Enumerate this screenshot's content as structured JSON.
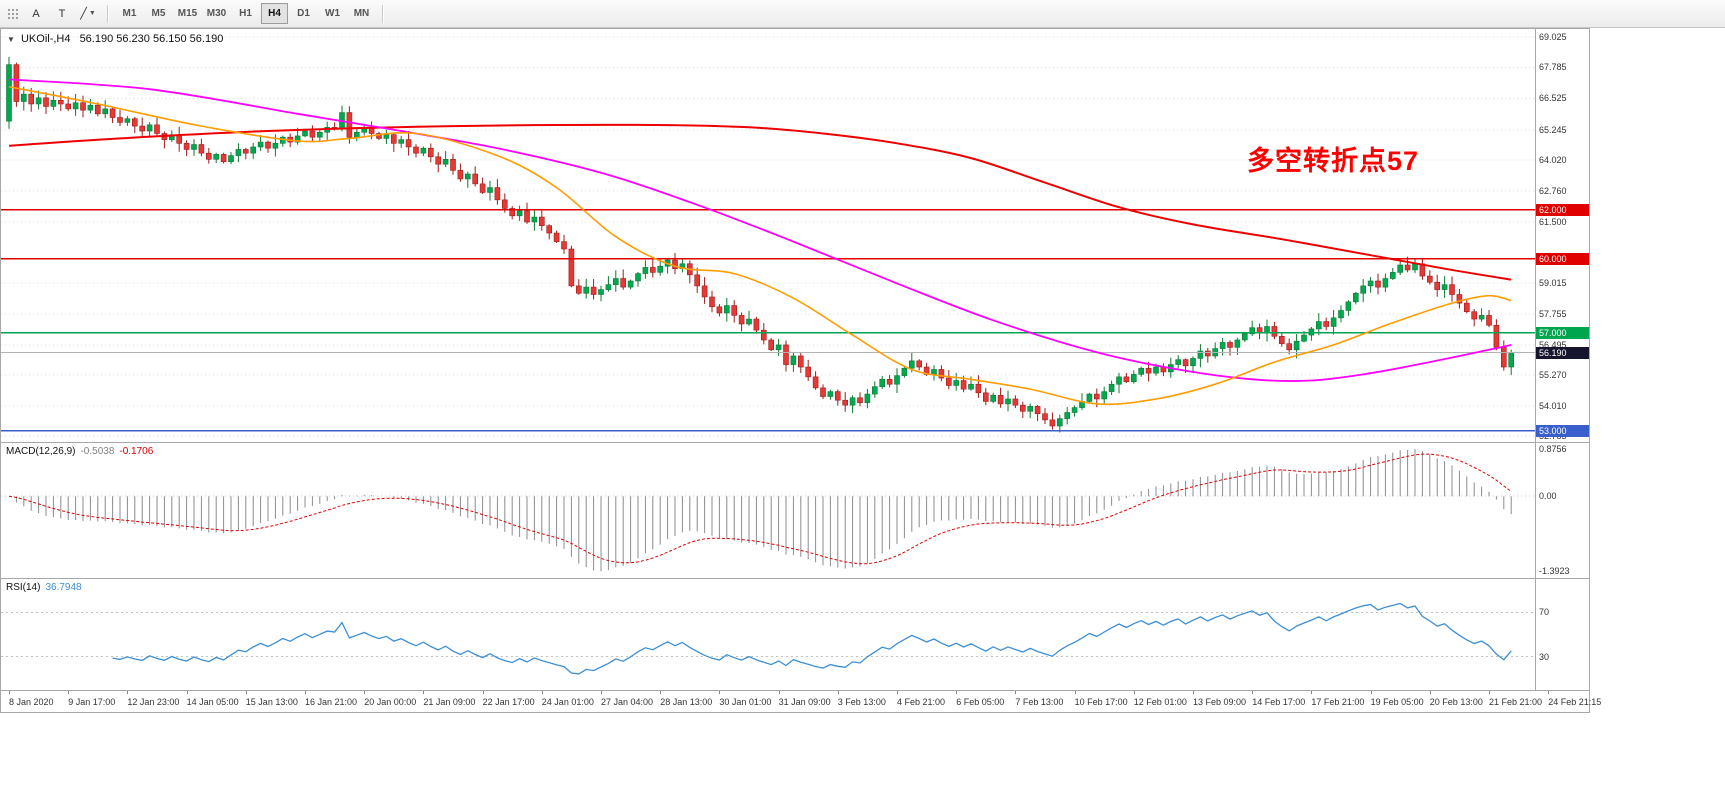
{
  "toolbar": {
    "tools": [
      {
        "label": "A",
        "name": "text-tool"
      },
      {
        "label": "T",
        "name": "shape-tool"
      },
      {
        "label": "╱",
        "name": "line-tool"
      }
    ],
    "timeframes": [
      "M1",
      "M5",
      "M15",
      "M30",
      "H1",
      "H4",
      "D1",
      "W1",
      "MN"
    ],
    "active_timeframe": "H4"
  },
  "chart": {
    "price_axis": {
      "labels": [
        "69.025",
        "67.785",
        "66.525",
        "65.245",
        "64.020",
        "62.760",
        "61.500",
        "59.015",
        "57.755",
        "56.495",
        "55.270",
        "54.010",
        "52.785"
      ],
      "badges": [
        {
          "value": "62.000",
          "price": 62.0,
          "color": "#e00000"
        },
        {
          "value": "60.000",
          "price": 60.0,
          "color": "#e00000"
        },
        {
          "value": "57.000",
          "price": 57.0,
          "color": "#00a550"
        },
        {
          "value": "56.190",
          "price": 56.19,
          "color": "#15152e"
        },
        {
          "value": "53.000",
          "price": 53.0,
          "color": "#3a5fcd"
        }
      ]
    }
  },
  "indicators": {
    "macd": {
      "name": "MACD(12,26,9)",
      "value_macd": "-0.5038",
      "value_signal": "-0.1706",
      "axis_labels": [
        {
          "text": "0.8756",
          "value": 0.8756
        },
        {
          "text": "0.00",
          "value": 0.0
        },
        {
          "text": "-1.3923",
          "value": -1.3923
        }
      ],
      "fast": 12,
      "slow": 26,
      "signal": 9,
      "histogram_color": "#8c8c8c",
      "signal_color": "#e00000"
    },
    "rsi": {
      "name": "RSI(14)",
      "value": "36.7948",
      "period": 14,
      "levels": [
        70,
        30
      ],
      "line_color": "#3c8fd6"
    }
  },
  "chart_data": {
    "type": "candlestick",
    "title": "UKOil-,H4",
    "symbol": "UKOil-",
    "timeframe": "H4",
    "current_ohlc": "56.190 56.230 56.150 56.190",
    "annotation": "多空转折点57",
    "annotation_color": "#ff0000",
    "ylim": [
      52.55,
      69.35
    ],
    "bid": 56.19,
    "up_color": "#00a94f",
    "down_color": "#e53935",
    "x_labels": [
      "8 Jan 2020",
      "9 Jan 17:00",
      "12 Jan 23:00",
      "14 Jan 05:00",
      "15 Jan 13:00",
      "16 Jan 21:00",
      "20 Jan 00:00",
      "21 Jan 09:00",
      "22 Jan 17:00",
      "24 Jan 01:00",
      "27 Jan 04:00",
      "28 Jan 13:00",
      "30 Jan 01:00",
      "31 Jan 09:00",
      "3 Feb 13:00",
      "4 Feb 21:00",
      "6 Feb 05:00",
      "7 Feb 13:00",
      "10 Feb 17:00",
      "12 Feb 01:00",
      "13 Feb 09:00",
      "14 Feb 17:00",
      "17 Feb 21:00",
      "19 Feb 05:00",
      "20 Feb 13:00",
      "21 Feb 21:00",
      "24 Feb 21:15"
    ],
    "bars_per_label": 8,
    "open_first": 65.6,
    "closes": [
      67.9,
      66.4,
      66.7,
      66.3,
      66.55,
      66.2,
      66.45,
      66.3,
      66.1,
      66.35,
      66.05,
      66.25,
      65.9,
      66.1,
      65.75,
      65.55,
      65.7,
      65.4,
      65.2,
      65.45,
      65.1,
      64.85,
      65.05,
      64.7,
      64.45,
      64.65,
      64.3,
      64.05,
      64.25,
      63.95,
      64.2,
      64.45,
      64.3,
      64.55,
      64.75,
      64.5,
      64.7,
      64.95,
      64.75,
      65.0,
      65.2,
      64.95,
      65.15,
      65.35,
      65.3,
      65.95,
      64.95,
      65.15,
      65.35,
      65.1,
      64.9,
      65.05,
      64.7,
      64.85,
      64.55,
      64.3,
      64.5,
      64.15,
      63.85,
      64.05,
      63.6,
      63.25,
      63.45,
      63.05,
      62.7,
      62.9,
      62.4,
      62.05,
      61.75,
      61.95,
      61.5,
      61.7,
      61.35,
      61.05,
      60.7,
      60.4,
      58.9,
      58.6,
      58.85,
      58.55,
      58.75,
      58.95,
      59.2,
      58.85,
      59.1,
      59.4,
      59.65,
      59.45,
      59.7,
      59.95,
      59.6,
      59.8,
      59.35,
      58.9,
      58.45,
      58.05,
      57.8,
      58.1,
      57.7,
      57.35,
      57.55,
      57.1,
      56.7,
      56.3,
      56.5,
      55.7,
      56.05,
      55.6,
      55.2,
      54.75,
      54.4,
      54.6,
      54.25,
      54.05,
      54.35,
      54.15,
      54.5,
      54.8,
      55.1,
      54.9,
      55.25,
      55.55,
      55.85,
      55.6,
      55.3,
      55.5,
      55.15,
      54.85,
      55.05,
      54.7,
      54.9,
      54.55,
      54.2,
      54.45,
      54.1,
      54.3,
      54.05,
      53.8,
      54.0,
      53.7,
      53.45,
      53.2,
      53.5,
      53.75,
      53.95,
      54.2,
      54.5,
      54.3,
      54.6,
      54.9,
      55.2,
      55.0,
      55.3,
      55.55,
      55.35,
      55.6,
      55.4,
      55.7,
      55.9,
      55.65,
      55.95,
      56.25,
      56.05,
      56.35,
      56.6,
      56.4,
      56.7,
      56.95,
      57.2,
      57.0,
      57.25,
      56.85,
      56.55,
      56.3,
      56.65,
      56.9,
      57.15,
      57.45,
      57.25,
      57.6,
      57.9,
      58.25,
      58.6,
      58.9,
      59.1,
      58.85,
      59.2,
      59.45,
      59.75,
      59.55,
      59.8,
      59.3,
      59.05,
      58.75,
      58.95,
      58.55,
      58.2,
      57.85,
      57.55,
      57.7,
      57.3,
      56.4,
      55.6,
      56.19
    ],
    "hlines": [
      {
        "price": 62.0,
        "color": "#e00000",
        "width": 1.4
      },
      {
        "price": 60.0,
        "color": "#e00000",
        "width": 1.4
      },
      {
        "price": 57.0,
        "color": "#00a550",
        "width": 1.6
      },
      {
        "price": 53.0,
        "color": "#3a5fcd",
        "width": 1.6
      }
    ],
    "moving_averages": [
      {
        "name": "ma-slow",
        "color": "#ee0000",
        "width": 2,
        "points": [
          [
            0,
            64.6
          ],
          [
            15,
            64.9
          ],
          [
            35,
            65.2
          ],
          [
            60,
            65.4
          ],
          [
            85,
            65.45
          ],
          [
            100,
            65.35
          ],
          [
            110,
            65.1
          ],
          [
            120,
            64.7
          ],
          [
            130,
            64.1
          ],
          [
            140,
            63.1
          ],
          [
            150,
            62.1
          ],
          [
            160,
            61.4
          ],
          [
            172,
            60.8
          ],
          [
            184,
            60.15
          ],
          [
            194,
            59.6
          ],
          [
            203,
            59.15
          ]
        ]
      },
      {
        "name": "ma-mid",
        "color": "#ff00ff",
        "width": 1.8,
        "points": [
          [
            0,
            67.3
          ],
          [
            19,
            66.9
          ],
          [
            39,
            65.9
          ],
          [
            53,
            65.2
          ],
          [
            66,
            64.5
          ],
          [
            80,
            63.5
          ],
          [
            93,
            62.2
          ],
          [
            106,
            60.7
          ],
          [
            120,
            59.0
          ],
          [
            133,
            57.5
          ],
          [
            147,
            56.2
          ],
          [
            158,
            55.5
          ],
          [
            168,
            55.1
          ],
          [
            176,
            55.05
          ],
          [
            184,
            55.35
          ],
          [
            192,
            55.8
          ],
          [
            200,
            56.3
          ],
          [
            203,
            56.5
          ]
        ]
      },
      {
        "name": "ma-fast",
        "color": "#ff9c00",
        "width": 1.6,
        "points": [
          [
            0,
            67.0
          ],
          [
            12,
            66.3
          ],
          [
            26,
            65.4
          ],
          [
            39,
            64.8
          ],
          [
            46,
            64.9
          ],
          [
            55,
            65.1
          ],
          [
            66,
            64.2
          ],
          [
            74,
            62.9
          ],
          [
            82,
            60.9
          ],
          [
            90,
            59.7
          ],
          [
            98,
            59.4
          ],
          [
            106,
            58.4
          ],
          [
            114,
            56.9
          ],
          [
            122,
            55.5
          ],
          [
            130,
            55.1
          ],
          [
            138,
            54.7
          ],
          [
            147,
            54.1
          ],
          [
            155,
            54.3
          ],
          [
            163,
            54.9
          ],
          [
            171,
            55.8
          ],
          [
            179,
            56.5
          ],
          [
            187,
            57.4
          ],
          [
            195,
            58.2
          ],
          [
            200,
            58.5
          ],
          [
            203,
            58.3
          ]
        ]
      }
    ],
    "macd_ylim": [
      -1.52,
      0.99
    ],
    "rsi_ylim": [
      0,
      100
    ]
  }
}
